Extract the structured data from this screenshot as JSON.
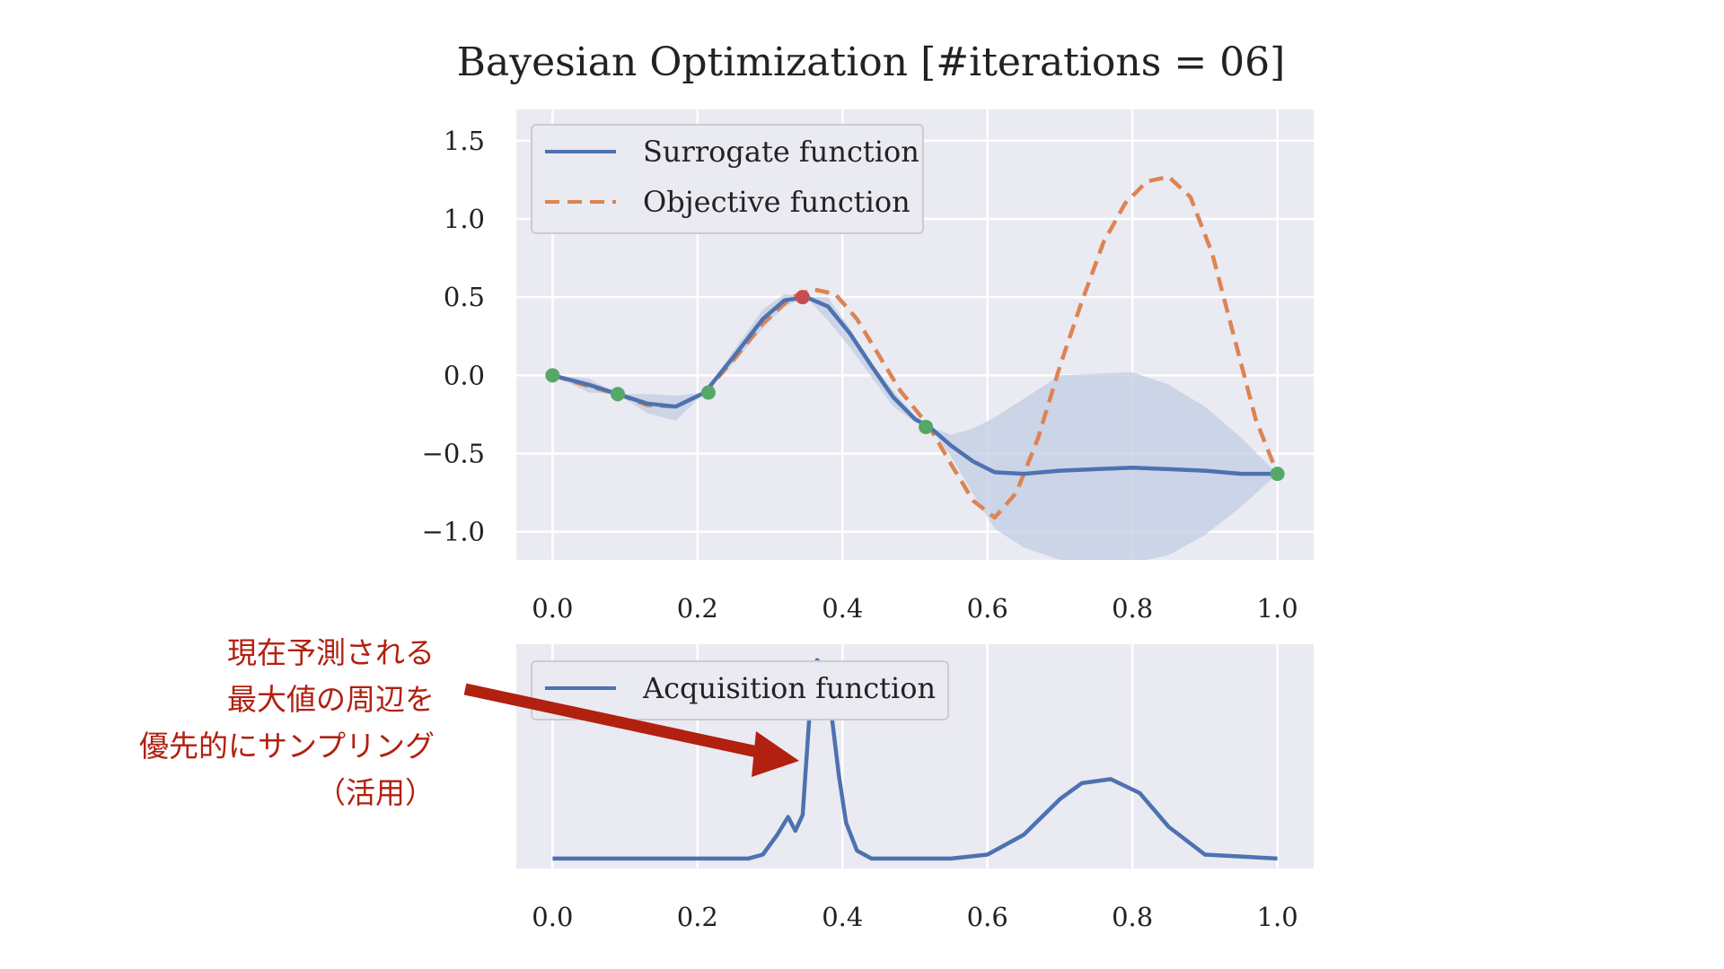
{
  "title": "Bayesian Optimization [#iterations = 06]",
  "colors": {
    "surrogate": "#4c72b0",
    "objective": "#dd8452",
    "band": "#c2cce3",
    "sample": "#55a868",
    "best": "#c44e52",
    "panel": "#eaeaf2",
    "arrow": "#b22010"
  },
  "chart_data": [
    {
      "type": "line",
      "name": "main",
      "xlim": [
        -0.05,
        1.05
      ],
      "ylim": [
        -1.18,
        1.7
      ],
      "xticks": [
        0.0,
        0.2,
        0.4,
        0.6,
        0.8,
        1.0
      ],
      "xtick_labels": [
        "0.0",
        "0.2",
        "0.4",
        "0.6",
        "0.8",
        "1.0"
      ],
      "yticks": [
        -1.0,
        -0.5,
        0.0,
        0.5,
        1.0,
        1.5
      ],
      "ytick_labels": [
        "−1.0",
        "−0.5",
        "0.0",
        "0.5",
        "1.0",
        "1.5"
      ],
      "legend": {
        "position": "top-left",
        "entries": [
          "Surrogate function",
          "Objective function"
        ]
      },
      "series": [
        {
          "name": "Surrogate function",
          "style": "solid",
          "x": [
            0.0,
            0.05,
            0.09,
            0.13,
            0.17,
            0.21,
            0.25,
            0.29,
            0.32,
            0.35,
            0.38,
            0.41,
            0.44,
            0.47,
            0.5,
            0.52,
            0.55,
            0.58,
            0.61,
            0.65,
            0.7,
            0.75,
            0.8,
            0.85,
            0.9,
            0.95,
            1.0
          ],
          "y": [
            0.0,
            -0.06,
            -0.12,
            -0.18,
            -0.2,
            -0.11,
            0.12,
            0.36,
            0.48,
            0.5,
            0.44,
            0.27,
            0.06,
            -0.14,
            -0.28,
            -0.33,
            -0.45,
            -0.55,
            -0.62,
            -0.63,
            -0.61,
            -0.6,
            -0.59,
            -0.6,
            -0.61,
            -0.63,
            -0.63
          ]
        },
        {
          "name": "Objective function",
          "style": "dashed",
          "x": [
            0.0,
            0.05,
            0.09,
            0.13,
            0.17,
            0.21,
            0.25,
            0.29,
            0.33,
            0.36,
            0.39,
            0.42,
            0.45,
            0.48,
            0.52,
            0.55,
            0.58,
            0.61,
            0.64,
            0.67,
            0.7,
            0.73,
            0.76,
            0.79,
            0.82,
            0.85,
            0.88,
            0.91,
            0.94,
            0.97,
            1.0
          ],
          "y": [
            0.0,
            -0.07,
            -0.12,
            -0.19,
            -0.2,
            -0.11,
            0.1,
            0.33,
            0.5,
            0.55,
            0.52,
            0.36,
            0.13,
            -0.1,
            -0.33,
            -0.57,
            -0.8,
            -0.91,
            -0.75,
            -0.4,
            0.06,
            0.47,
            0.85,
            1.1,
            1.24,
            1.27,
            1.14,
            0.78,
            0.25,
            -0.28,
            -0.63
          ]
        }
      ],
      "confidence_band": {
        "name": "Surrogate uncertainty",
        "x": [
          0.0,
          0.05,
          0.09,
          0.13,
          0.17,
          0.21,
          0.25,
          0.29,
          0.32,
          0.35,
          0.38,
          0.41,
          0.44,
          0.47,
          0.5,
          0.52,
          0.55,
          0.58,
          0.61,
          0.65,
          0.7,
          0.75,
          0.8,
          0.85,
          0.9,
          0.95,
          1.0
        ],
        "upper": [
          0.0,
          -0.02,
          -0.12,
          -0.12,
          -0.13,
          -0.11,
          0.16,
          0.42,
          0.52,
          0.5,
          0.5,
          0.3,
          0.08,
          -0.1,
          -0.26,
          -0.33,
          -0.38,
          -0.34,
          -0.27,
          -0.15,
          0.0,
          0.01,
          0.02,
          -0.06,
          -0.2,
          -0.4,
          -0.63
        ],
        "lower": [
          0.0,
          -0.11,
          -0.12,
          -0.24,
          -0.29,
          -0.11,
          0.08,
          0.3,
          0.44,
          0.5,
          0.35,
          0.18,
          -0.01,
          -0.2,
          -0.3,
          -0.33,
          -0.52,
          -0.76,
          -0.98,
          -1.1,
          -1.18,
          -1.2,
          -1.2,
          -1.15,
          -1.02,
          -0.84,
          -0.63
        ]
      },
      "samples": {
        "name": "Observed points",
        "x": [
          0.0,
          0.09,
          0.215,
          0.515,
          1.0
        ],
        "y": [
          0.0,
          -0.12,
          -0.11,
          -0.33,
          -0.63
        ]
      },
      "current_best": {
        "name": "Current best",
        "x": 0.345,
        "y": 0.5
      }
    },
    {
      "type": "line",
      "name": "acquisition",
      "xlim": [
        -0.05,
        1.05
      ],
      "ylim": [
        -0.05,
        1.08
      ],
      "xticks": [
        0.0,
        0.2,
        0.4,
        0.6,
        0.8,
        1.0
      ],
      "xtick_labels": [
        "0.0",
        "0.2",
        "0.4",
        "0.6",
        "0.8",
        "1.0"
      ],
      "yticks": [],
      "legend": {
        "position": "top-left",
        "entries": [
          "Acquisition function"
        ]
      },
      "series": [
        {
          "name": "Acquisition function",
          "style": "solid",
          "x": [
            0.0,
            0.1,
            0.2,
            0.27,
            0.29,
            0.31,
            0.325,
            0.335,
            0.345,
            0.355,
            0.365,
            0.375,
            0.385,
            0.395,
            0.405,
            0.42,
            0.44,
            0.5,
            0.55,
            0.6,
            0.65,
            0.7,
            0.73,
            0.77,
            0.81,
            0.85,
            0.9,
            1.0
          ],
          "y": [
            0.0,
            0.0,
            0.0,
            0.0,
            0.02,
            0.12,
            0.21,
            0.14,
            0.22,
            0.75,
            1.0,
            0.96,
            0.72,
            0.42,
            0.18,
            0.04,
            0.0,
            0.0,
            0.0,
            0.02,
            0.12,
            0.3,
            0.38,
            0.4,
            0.33,
            0.16,
            0.02,
            0.0
          ]
        }
      ]
    }
  ],
  "annotation": {
    "lines": [
      "現在予測される",
      "最大値の周辺を",
      "優先的にサンプリング",
      "（活用）"
    ]
  }
}
